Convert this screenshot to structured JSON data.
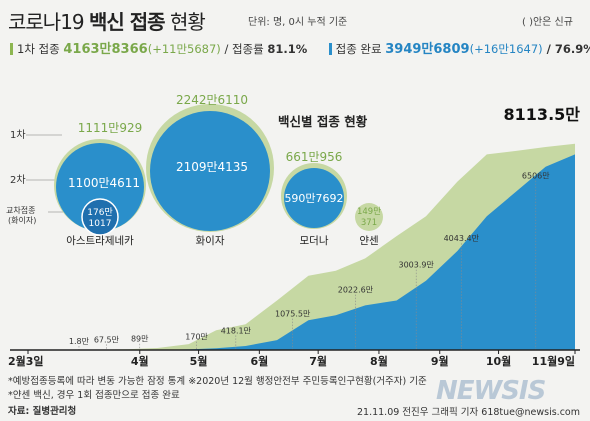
{
  "header": {
    "title_prefix": "코로나19 ",
    "title_bold": "백신 접종",
    "title_suffix": " 현황",
    "unit": "단위: 명, 0시 누적 기준",
    "new_note": "( )안은 신규"
  },
  "stats": {
    "first_label": "1차 접종 ",
    "first_value": "4163만8366",
    "first_new": "(+11만5687)",
    "first_rate_label": " / 접종률 ",
    "first_rate": "81.1%",
    "full_label": "접종 완료 ",
    "full_value": "3949만6809",
    "full_new": "(+16만1647)",
    "full_rate": " / 76.9%"
  },
  "bubbles": {
    "title": "백신별 접종 현황",
    "row_labels": [
      "1차",
      "2차",
      "교차접종\n(화이자)"
    ],
    "colors": {
      "first": "#c6d8a3",
      "second": "#2a8fcb",
      "cross": "#1f6fae"
    },
    "vaccines": [
      {
        "name": "아스트라제네카",
        "first": "1111만929",
        "second": "1100만4611",
        "cross_top": "176만",
        "cross_bottom": "1017"
      },
      {
        "name": "화이자",
        "first": "2242만6110",
        "second": "2109만4135"
      },
      {
        "name": "모더나",
        "first": "661만956",
        "second": "590만7692"
      },
      {
        "name": "얀센",
        "first": "149만",
        "second": "371"
      }
    ]
  },
  "chart_data": {
    "type": "area",
    "x_labels": [
      "2월3일",
      "4월",
      "5월",
      "6월",
      "7월",
      "8월",
      "9월",
      "10월",
      "11월9일"
    ],
    "x_months": [
      "2021-02-03",
      "2021-04-01",
      "2021-05-01",
      "2021-06-01",
      "2021-07-01",
      "2021-08-01",
      "2021-09-01",
      "2021-10-01",
      "2021-11-09"
    ],
    "series": [
      {
        "name": "1차",
        "color": "#c6d8a3",
        "points": [
          [
            "2021-02-26",
            0
          ],
          [
            "2021-03-10",
            5
          ],
          [
            "2021-03-25",
            15
          ],
          [
            "2021-04-10",
            40
          ],
          [
            "2021-04-26",
            120
          ],
          [
            "2021-05-10",
            400
          ],
          [
            "2021-05-25",
            520
          ],
          [
            "2021-06-10",
            1000
          ],
          [
            "2021-06-26",
            1500
          ],
          [
            "2021-07-10",
            1600
          ],
          [
            "2021-07-25",
            1850
          ],
          [
            "2021-08-10",
            2300
          ],
          [
            "2021-08-25",
            2700
          ],
          [
            "2021-09-10",
            3400
          ],
          [
            "2021-09-25",
            3950
          ],
          [
            "2021-10-10",
            4020
          ],
          [
            "2021-10-25",
            4100
          ],
          [
            "2021-11-09",
            4163.8
          ]
        ]
      },
      {
        "name": "접종 완료",
        "color": "#2a8fcb",
        "points": [
          [
            "2021-02-26",
            0
          ],
          [
            "2021-03-25",
            1
          ],
          [
            "2021-04-10",
            5
          ],
          [
            "2021-04-26",
            12
          ],
          [
            "2021-05-10",
            35
          ],
          [
            "2021-05-25",
            80
          ],
          [
            "2021-06-10",
            200
          ],
          [
            "2021-06-26",
            600
          ],
          [
            "2021-07-10",
            700
          ],
          [
            "2021-07-25",
            900
          ],
          [
            "2021-08-10",
            1000
          ],
          [
            "2021-08-25",
            1400
          ],
          [
            "2021-09-10",
            2000
          ],
          [
            "2021-09-25",
            2700
          ],
          [
            "2021-10-10",
            3200
          ],
          [
            "2021-10-25",
            3700
          ],
          [
            "2021-11-09",
            3949.7
          ]
        ]
      }
    ],
    "annotations": [
      {
        "date": "2021-03-01",
        "value": 1.8,
        "label": "1.8만"
      },
      {
        "date": "2021-03-15",
        "value": 67.5,
        "label": "67.5만"
      },
      {
        "date": "2021-04-01",
        "value": 89,
        "label": "89만"
      },
      {
        "date": "2021-04-30",
        "value": 170,
        "label": "170만"
      },
      {
        "date": "2021-05-20",
        "value": 418.1,
        "label": "418.1만"
      },
      {
        "date": "2021-06-18",
        "value": 1075.5,
        "label": "1075.5만"
      },
      {
        "date": "2021-07-20",
        "value": 2022.6,
        "label": "2022.6만"
      },
      {
        "date": "2021-08-20",
        "value": 3003.9,
        "label": "3003.9만"
      },
      {
        "date": "2021-09-12",
        "value": 4043.4,
        "label": "4043.4만"
      },
      {
        "date": "2021-10-20",
        "value": 6506,
        "label": "6506만"
      },
      {
        "date": "2021-11-09",
        "value": 8113.5,
        "label": "8113.5만"
      }
    ]
  },
  "footer": {
    "note1": "*예방접종등록에 따라 변동 가능한 잠정 통계 ※2020년 12월 행정안전부 주민등록인구현황(거주자) 기준",
    "note2": "*얀센 백신, 경우 1회 접종만으로 접종 완료",
    "source": "자료: 질병관리청",
    "credit": "21.11.09 전진우 그래픽 기자 618tue@newsis.com",
    "logo": "NEWSIS"
  }
}
